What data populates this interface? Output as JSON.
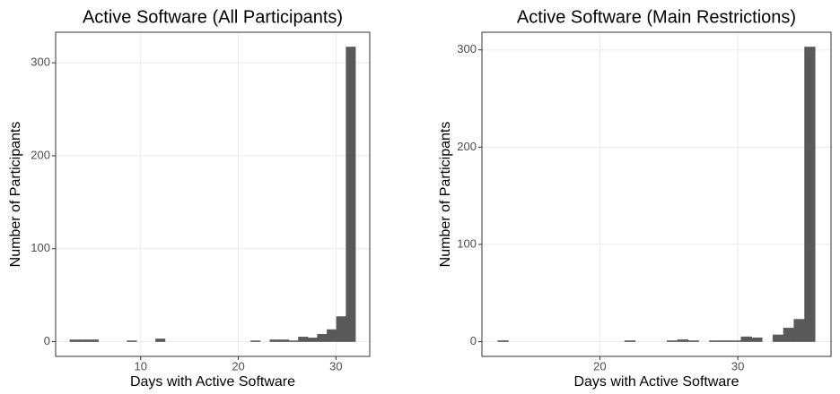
{
  "chart_data": [
    {
      "type": "histogram",
      "title": "Active Software (All Participants)",
      "x_label": "Days with Active Software",
      "y_label": "Number of Participants",
      "bins": [
        2.75,
        3.73,
        4.7,
        5.68,
        6.65,
        7.63,
        8.6,
        9.58,
        10.55,
        11.53,
        12.5,
        13.48,
        14.45,
        15.43,
        16.4,
        17.38,
        18.35,
        19.33,
        20.3,
        21.28,
        22.25,
        23.23,
        24.2,
        25.18,
        26.15,
        27.13,
        28.1,
        29.08,
        30.05,
        31.03,
        32.0
      ],
      "values": [
        2,
        2,
        2,
        0,
        0,
        0,
        1,
        0,
        0,
        3,
        0,
        0,
        0,
        0,
        0,
        0,
        0,
        0,
        0,
        1,
        0,
        2,
        2,
        1,
        5,
        4,
        8,
        13,
        27,
        317
      ],
      "color": "#595959",
      "xlim": [
        1.29,
        33.46
      ],
      "ylim": [
        -15.85,
        332.85
      ],
      "xticks": [
        10,
        20,
        30
      ],
      "yticks": [
        0,
        100,
        200,
        300
      ],
      "grid": true
    },
    {
      "type": "histogram",
      "title": "Active Software (Main Restrictions)",
      "x_label": "Days with Active Software",
      "y_label": "Number of Participants",
      "bins": [
        12.6,
        13.37,
        14.13,
        14.9,
        15.67,
        16.44,
        17.2,
        17.97,
        18.74,
        19.5,
        20.27,
        21.04,
        21.8,
        22.57,
        23.34,
        24.1,
        24.87,
        25.64,
        26.41,
        27.17,
        27.94,
        28.71,
        29.47,
        30.24,
        31.01,
        31.77,
        32.54,
        33.31,
        34.07,
        34.84,
        35.61
      ],
      "values": [
        1,
        0,
        0,
        0,
        0,
        0,
        0,
        0,
        0,
        0,
        0,
        0,
        1,
        0,
        0,
        0,
        1,
        2,
        1,
        0,
        1,
        1,
        1,
        5,
        4,
        0,
        7,
        14,
        23,
        303
      ],
      "color": "#595959",
      "xlim": [
        11.45,
        36.76
      ],
      "ylim": [
        -15.15,
        318.15
      ],
      "xticks": [
        20,
        30
      ],
      "yticks": [
        0,
        100,
        200,
        300
      ],
      "grid": true
    }
  ]
}
